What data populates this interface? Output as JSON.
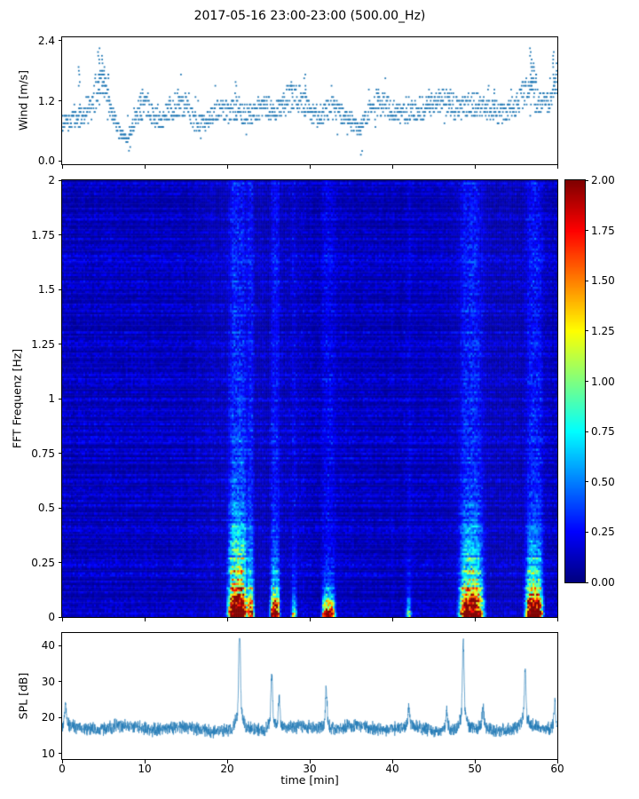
{
  "title": "2017-05-16 23:00-23:00 (500.00_Hz)",
  "xlabel": "time [min]",
  "x_ticks": {
    "values": [
      0,
      10,
      20,
      30,
      40,
      50,
      60
    ],
    "labels": [
      "0",
      "10",
      "20",
      "30",
      "40",
      "50",
      "60"
    ]
  },
  "chart_data": [
    {
      "id": "wind",
      "type": "scatter",
      "ylabel": "Wind [m/s]",
      "x_range": [
        0,
        60
      ],
      "y_range": [
        -0.07,
        2.47
      ],
      "y_ticks": {
        "values": [
          0.0,
          1.2,
          2.4
        ],
        "labels": [
          "0.0",
          "1.2",
          "2.4"
        ]
      },
      "marker_color": "#1f77b4",
      "quantize_step": 0.075,
      "envelope_per_min": [
        0.75,
        0.8,
        0.85,
        1.0,
        1.3,
        1.55,
        1.0,
        0.55,
        0.4,
        0.9,
        1.1,
        0.95,
        0.8,
        1.0,
        1.15,
        1.1,
        0.8,
        0.75,
        0.9,
        1.0,
        1.0,
        1.05,
        0.9,
        0.95,
        1.0,
        1.05,
        1.0,
        1.2,
        1.3,
        1.2,
        1.0,
        0.9,
        1.0,
        1.05,
        0.9,
        0.8,
        0.6,
        0.95,
        1.15,
        1.1,
        1.0,
        0.9,
        0.95,
        1.0,
        1.1,
        1.15,
        1.2,
        1.15,
        1.05,
        1.1,
        1.15,
        1.1,
        1.05,
        0.95,
        1.0,
        1.1,
        1.35,
        1.45,
        1.1,
        1.2,
        1.5
      ],
      "gusts": [
        {
          "t": 2.1,
          "v": 1.9
        },
        {
          "t": 4.5,
          "v": 2.3
        },
        {
          "t": 4.9,
          "v": 2.15
        },
        {
          "t": 5.2,
          "v": 1.95
        },
        {
          "t": 5.6,
          "v": 1.75
        },
        {
          "t": 9.6,
          "v": 1.45
        },
        {
          "t": 14.0,
          "v": 1.3
        },
        {
          "t": 21.0,
          "v": 1.6
        },
        {
          "t": 27.9,
          "v": 1.6
        },
        {
          "t": 29.4,
          "v": 1.75
        },
        {
          "t": 38.4,
          "v": 1.5
        },
        {
          "t": 44.6,
          "v": 1.45
        },
        {
          "t": 47.0,
          "v": 1.5
        },
        {
          "t": 52.3,
          "v": 1.45
        },
        {
          "t": 56.7,
          "v": 2.3
        },
        {
          "t": 57.0,
          "v": 2.1
        },
        {
          "t": 57.3,
          "v": 1.9
        },
        {
          "t": 59.6,
          "v": 2.25
        },
        {
          "t": 60.0,
          "v": 1.95
        },
        {
          "t": 36.2,
          "v": 0.12
        },
        {
          "t": 8.1,
          "v": 0.2
        }
      ]
    },
    {
      "id": "spectrogram",
      "type": "heatmap",
      "ylabel": "FFT Frequenz [Hz]",
      "x_range": [
        0,
        60
      ],
      "y_range": [
        0,
        2
      ],
      "y_ticks": {
        "values": [
          0,
          0.25,
          0.5,
          0.75,
          1,
          1.25,
          1.5,
          1.75,
          2
        ],
        "labels": [
          "0",
          "0.25",
          "0.5",
          "0.75",
          "1",
          "1.25",
          "1.5",
          "1.75",
          "2"
        ]
      },
      "colormap": "jet",
      "value_range": [
        0,
        2
      ],
      "baseline": {
        "min": 0.03,
        "max": 0.3
      },
      "events": [
        {
          "t_center": 21.3,
          "t_width": 1.8,
          "peak": 2.0,
          "freq_extent": 0.22,
          "broadband": 0.34
        },
        {
          "t_center": 22.9,
          "t_width": 0.6,
          "peak": 1.2,
          "freq_extent": 0.15,
          "broadband": 0.26
        },
        {
          "t_center": 25.8,
          "t_width": 0.9,
          "peak": 1.7,
          "freq_extent": 0.12,
          "broadband": 0.22
        },
        {
          "t_center": 28.1,
          "t_width": 0.5,
          "peak": 0.9,
          "freq_extent": 0.08,
          "broadband": 0.12
        },
        {
          "t_center": 32.3,
          "t_width": 1.2,
          "peak": 1.9,
          "freq_extent": 0.07,
          "broadband": 0.18
        },
        {
          "t_center": 42.0,
          "t_width": 0.5,
          "peak": 0.6,
          "freq_extent": 0.08,
          "broadband": 0.1
        },
        {
          "t_center": 49.6,
          "t_width": 2.2,
          "peak": 1.9,
          "freq_extent": 0.18,
          "broadband": 0.3
        },
        {
          "t_center": 57.2,
          "t_width": 1.6,
          "peak": 2.0,
          "freq_extent": 0.16,
          "broadband": 0.26
        }
      ],
      "colorbar_ticks": {
        "values": [
          0,
          0.25,
          0.5,
          0.75,
          1,
          1.25,
          1.5,
          1.75,
          2
        ],
        "labels": [
          "0.00",
          "0.25",
          "0.50",
          "0.75",
          "1.00",
          "1.25",
          "1.50",
          "1.75",
          "2.00"
        ]
      }
    },
    {
      "id": "spl",
      "type": "line",
      "ylabel": "SPL [dB]",
      "x_range": [
        0,
        60
      ],
      "y_range": [
        8.5,
        43.5
      ],
      "y_ticks": {
        "values": [
          10,
          20,
          30,
          40
        ],
        "labels": [
          "10",
          "20",
          "30",
          "40"
        ]
      },
      "line_color": "#1f77b4",
      "baseline": 17,
      "noise_amp": 2.2,
      "spikes": [
        {
          "t": 0.4,
          "v": 22
        },
        {
          "t": 21.5,
          "v": 40
        },
        {
          "t": 25.4,
          "v": 30
        },
        {
          "t": 26.3,
          "v": 24
        },
        {
          "t": 32.0,
          "v": 26
        },
        {
          "t": 42.0,
          "v": 21.5
        },
        {
          "t": 46.6,
          "v": 22
        },
        {
          "t": 48.6,
          "v": 37
        },
        {
          "t": 51.0,
          "v": 22
        },
        {
          "t": 56.1,
          "v": 30
        },
        {
          "t": 59.7,
          "v": 23
        }
      ]
    }
  ]
}
